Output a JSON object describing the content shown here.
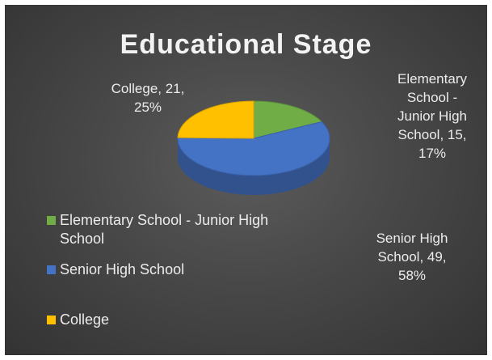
{
  "chart_data": {
    "type": "pie",
    "style": "3d",
    "title": "Educational Stage",
    "legend_position": "left",
    "slices": [
      {
        "name": "Elementary School - Junior High School",
        "value": 15,
        "percent": "17%",
        "color": "#70ad47",
        "data_label": [
          "Elementary",
          "School -",
          "Junior High",
          "School, 15,",
          "17%"
        ]
      },
      {
        "name": "Senior High School",
        "value": 49,
        "percent": "58%",
        "color": "#4472c4",
        "data_label": [
          "Senior High",
          "School, 49,",
          "58%"
        ]
      },
      {
        "name": "College",
        "value": 21,
        "percent": "25%",
        "color": "#ffc000",
        "data_label": [
          "College, 21,",
          "25%"
        ]
      }
    ],
    "legend": [
      {
        "lines": [
          "Elementary School - Junior High",
          "School"
        ]
      },
      {
        "lines": [
          "Senior High School"
        ]
      },
      {
        "lines": [
          "College"
        ]
      }
    ]
  }
}
